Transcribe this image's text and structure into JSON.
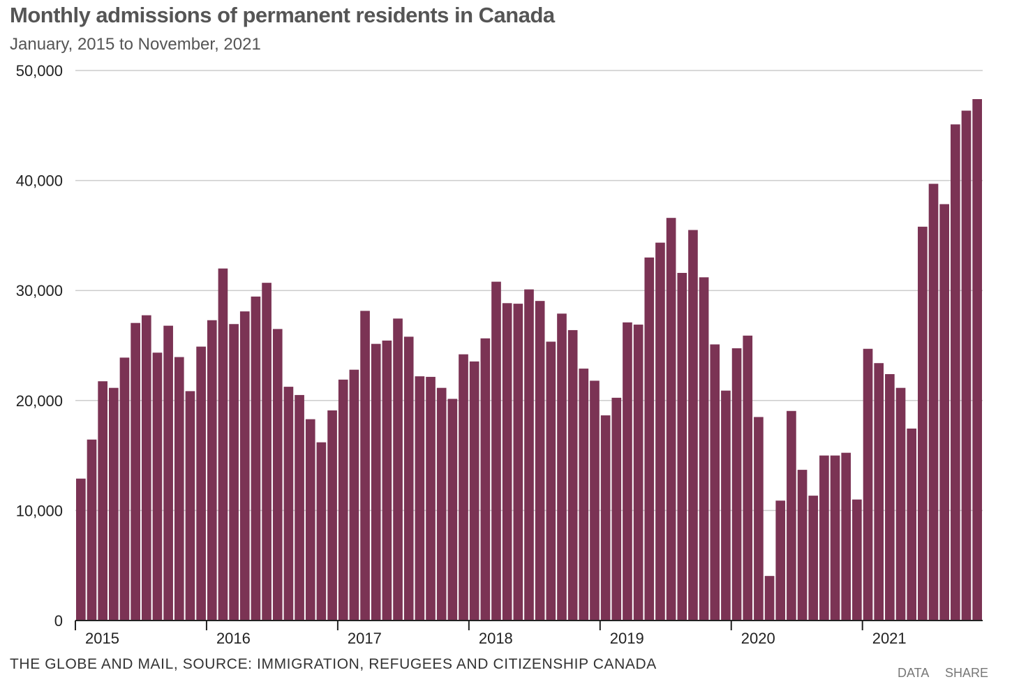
{
  "chart_data": {
    "type": "bar",
    "title": "Monthly admissions of permanent residents in Canada",
    "subtitle": "January, 2015 to November, 2021",
    "source": "THE GLOBE AND MAIL, SOURCE: IMMIGRATION, REFUGEES AND CITIZENSHIP CANADA",
    "xlabel": "",
    "ylabel": "",
    "ylim": [
      0,
      50000
    ],
    "yticks": [
      0,
      10000,
      20000,
      30000,
      40000,
      50000
    ],
    "ytick_labels": [
      "0",
      "10,000",
      "20,000",
      "30,000",
      "40,000",
      "50,000"
    ],
    "year_labels": [
      "2015",
      "2016",
      "2017",
      "2018",
      "2019",
      "2020",
      "2021"
    ],
    "bar_color": "#7b3354",
    "grid_color": "#cccccc",
    "series": [
      {
        "name": "Admissions",
        "values": [
          12900,
          16450,
          21750,
          21150,
          23900,
          27050,
          27750,
          24350,
          26800,
          23950,
          20850,
          24900,
          27300,
          32000,
          26950,
          28100,
          29450,
          30700,
          26500,
          21250,
          20500,
          18300,
          16200,
          19100,
          21900,
          22800,
          28150,
          25150,
          25450,
          27450,
          25800,
          22200,
          22150,
          21150,
          20150,
          24200,
          23550,
          25650,
          30800,
          28850,
          28800,
          30100,
          29050,
          25350,
          27900,
          26400,
          22900,
          21800,
          18650,
          20250,
          27100,
          26900,
          33000,
          34350,
          36600,
          31600,
          35500,
          31200,
          25100,
          20900,
          24750,
          25900,
          18500,
          4050,
          10900,
          19050,
          13700,
          11350,
          15000,
          15000,
          15250,
          11000,
          24700,
          23400,
          22400,
          21150,
          17450,
          35800,
          39700,
          37850,
          45100,
          46350,
          47400
        ]
      }
    ]
  },
  "footer": {
    "data_label": "DATA",
    "share_label": "SHARE"
  }
}
